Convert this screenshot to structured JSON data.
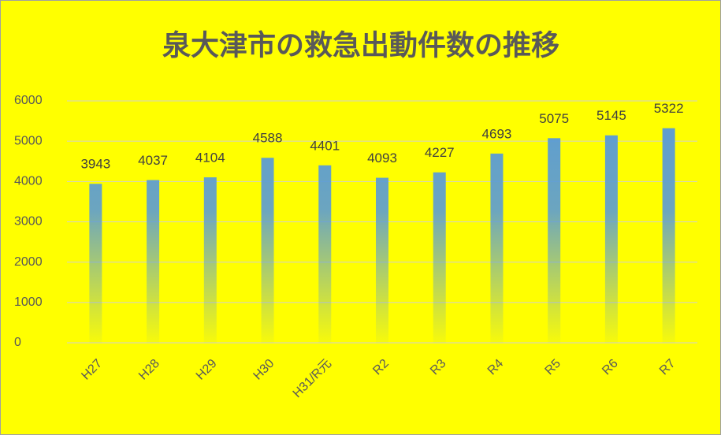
{
  "chart_data": {
    "type": "bar",
    "title": "泉大津市の救急出動件数の推移",
    "categories": [
      "H27",
      "H28",
      "H29",
      "H30",
      "H31/R元",
      "R2",
      "R3",
      "R4",
      "R5",
      "R6",
      "R7"
    ],
    "values": [
      3943,
      4037,
      4104,
      4588,
      4401,
      4093,
      4227,
      4693,
      5075,
      5145,
      5322
    ],
    "color": "#5b9bd5",
    "ylim": [
      0,
      6000
    ],
    "yticks": [
      0,
      1000,
      2000,
      3000,
      4000,
      5000,
      6000
    ],
    "grid": true
  }
}
